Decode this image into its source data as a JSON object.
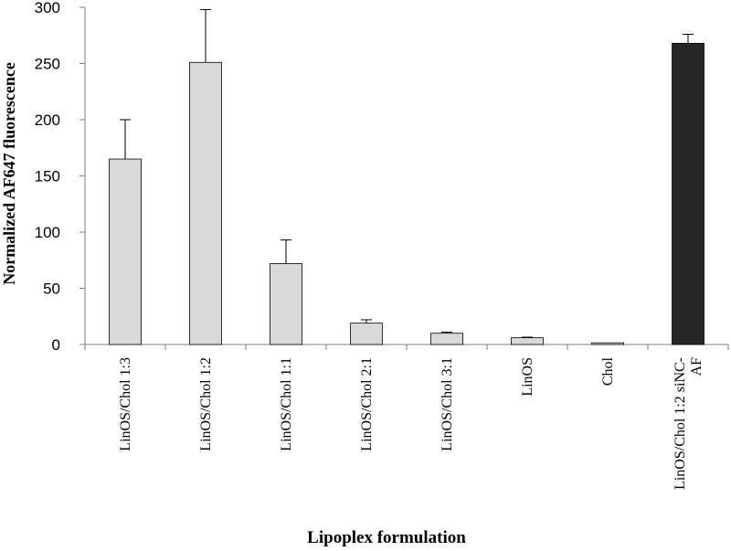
{
  "chart_data": {
    "type": "bar",
    "title": "",
    "xlabel": "Lipoplex formulation",
    "ylabel": "Normalized AF647 fluorescence",
    "ylim": [
      0,
      300
    ],
    "yticks": [
      0,
      50,
      100,
      150,
      200,
      250,
      300
    ],
    "grid": false,
    "legend": "none",
    "categories": [
      "LinOS/Chol 1:3",
      "LinOS/Chol 1:2",
      "LinOS/Chol 1:1",
      "LinOS/Chol 2:1",
      "LinOS/Chol 3:1",
      "LinOS",
      "Chol",
      [
        "LinOS/Chol 1:2 siNC-",
        "AF"
      ]
    ],
    "values": [
      165,
      251,
      72,
      19,
      10,
      6,
      1.5,
      268
    ],
    "errors": [
      35,
      47,
      21,
      3,
      1,
      0.5,
      0.3,
      8
    ],
    "colors": [
      "#d9d9d9",
      "#d9d9d9",
      "#d9d9d9",
      "#d9d9d9",
      "#d9d9d9",
      "#d9d9d9",
      "#d9d9d9",
      "#262626"
    ]
  }
}
